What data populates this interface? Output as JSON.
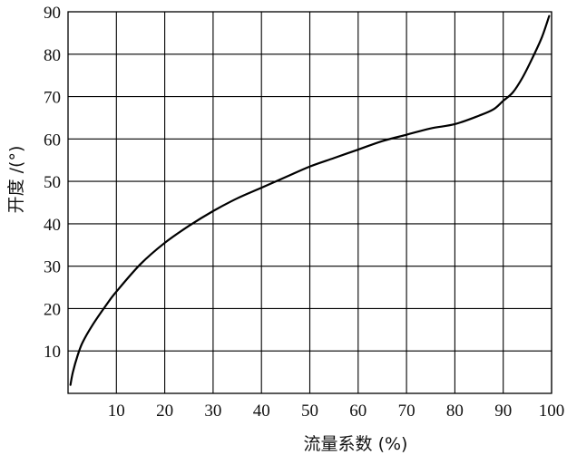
{
  "chart_data": {
    "type": "line",
    "title": "",
    "xlabel": "流量系数 (%)",
    "ylabel": "开度 /(°)",
    "xlim": [
      0,
      100
    ],
    "ylim": [
      0,
      90
    ],
    "x_ticks": [
      10,
      20,
      30,
      40,
      50,
      60,
      70,
      80,
      90,
      100
    ],
    "y_ticks": [
      10,
      20,
      30,
      40,
      50,
      60,
      70,
      80,
      90
    ],
    "x_tick_labels": [
      "10",
      "20",
      "30",
      "40",
      "50",
      "60",
      "70",
      "80",
      "90",
      "100"
    ],
    "y_tick_labels": [
      "10",
      "20",
      "30",
      "40",
      "50",
      "60",
      "70",
      "80",
      "90"
    ],
    "grid": true,
    "series": [
      {
        "color": "#000000",
        "x": [
          0.5,
          1,
          2,
          3,
          5,
          8,
          10,
          15,
          20,
          25,
          30,
          35,
          40,
          45,
          50,
          55,
          60,
          65,
          70,
          75,
          80,
          85,
          88,
          90,
          92,
          94,
          96,
          98,
          99.5
        ],
        "y": [
          2,
          5,
          9,
          12,
          16,
          21,
          24,
          30.5,
          35.5,
          39.5,
          43,
          46,
          48.5,
          51,
          53.5,
          55.5,
          57.5,
          59.5,
          61,
          62.5,
          63.5,
          65.5,
          67,
          69,
          71,
          74.5,
          79,
          84,
          89
        ]
      }
    ]
  }
}
